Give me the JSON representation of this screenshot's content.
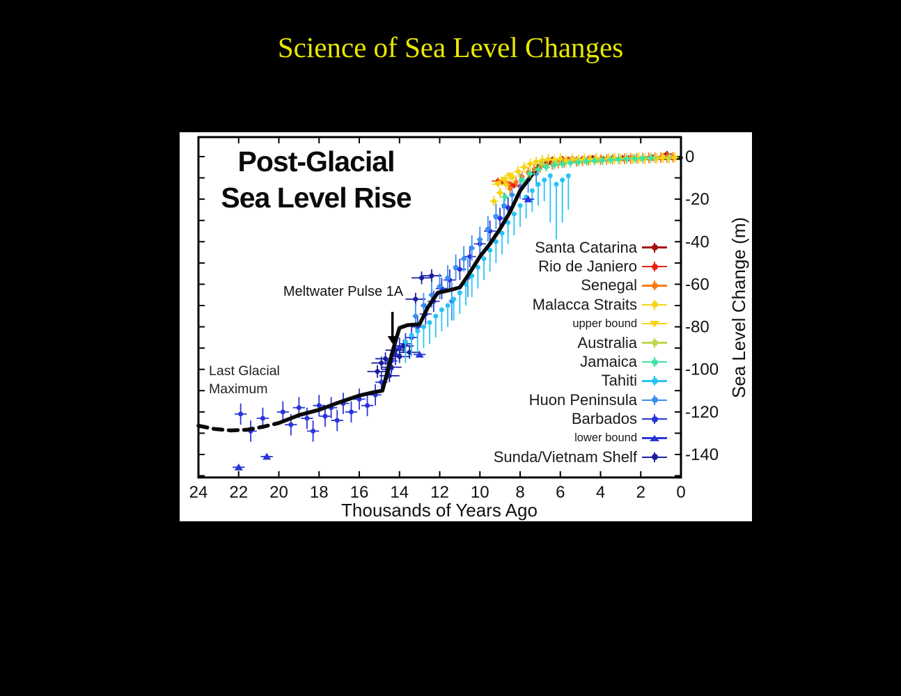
{
  "slide": {
    "title": "Science of Sea Level Changes",
    "title_color": "#e9e900",
    "background": "#000000"
  },
  "chart": {
    "title_line1": "Post-Glacial",
    "title_line2": "Sea Level Rise",
    "annotations": {
      "meltwater": {
        "text": "Meltwater Pulse 1A",
        "arrow_ka": 14.35,
        "arrow_m_from": -73,
        "arrow_m_to": -88
      },
      "lgm": {
        "line1": "Last Glacial",
        "line2": "Maximum"
      }
    }
  },
  "chart_data": {
    "type": "scatter",
    "title": "Post-Glacial Sea Level Rise",
    "xlabel": "Thousands of Years Ago",
    "ylabel": "Sea Level Change (m)",
    "x_axis": {
      "label": "Thousands of Years Ago",
      "range": [
        24,
        0
      ],
      "ticks": [
        24,
        22,
        20,
        18,
        16,
        14,
        12,
        10,
        8,
        6,
        4,
        2,
        0
      ],
      "direction": "reversed"
    },
    "y_axis": {
      "label": "Sea Level Change (m)",
      "range": [
        9,
        -151
      ],
      "ticks": [
        0,
        -20,
        -40,
        -60,
        -80,
        -100,
        -120,
        -140
      ],
      "minor_step": 10,
      "labels_side": "right"
    },
    "grid": "off",
    "legend_position": "right-inside",
    "curve": {
      "name": "eustatic sea level curve",
      "color": "#0a0a0a",
      "dashed": [
        [
          24,
          -126.5
        ],
        [
          23.2,
          -128
        ],
        [
          22.4,
          -128.7
        ],
        [
          21.6,
          -128.4
        ],
        [
          20.8,
          -127
        ],
        [
          20.0,
          -125.2
        ]
      ],
      "solid": [
        [
          20.0,
          -125.2
        ],
        [
          19.0,
          -121.5
        ],
        [
          18.0,
          -119
        ],
        [
          17.0,
          -115.5
        ],
        [
          16.0,
          -112.3
        ],
        [
          15.2,
          -110.6
        ],
        [
          14.85,
          -110
        ],
        [
          14.6,
          -101
        ],
        [
          14.3,
          -90
        ],
        [
          14.0,
          -80.5
        ],
        [
          13.6,
          -79.2
        ],
        [
          13.0,
          -78.8
        ],
        [
          12.6,
          -71
        ],
        [
          12.1,
          -64
        ],
        [
          11.6,
          -63
        ],
        [
          11.0,
          -61.5
        ],
        [
          10.6,
          -56
        ],
        [
          10.0,
          -47
        ],
        [
          9.5,
          -41
        ],
        [
          9.0,
          -34
        ],
        [
          8.5,
          -26
        ],
        [
          8.0,
          -16
        ],
        [
          7.6,
          -11
        ],
        [
          7.1,
          -4.5
        ],
        [
          6.6,
          -3
        ],
        [
          6.0,
          -2.2
        ],
        [
          5.0,
          -1.8
        ],
        [
          4.0,
          -1.3
        ],
        [
          3.0,
          -1
        ],
        [
          2.0,
          -0.8
        ],
        [
          1.0,
          -0.7
        ],
        [
          0.0,
          -0.6
        ]
      ]
    },
    "series": [
      {
        "key": "santa-catarina",
        "label": "Santa Catarina",
        "color": "#a31111",
        "marker": "dot",
        "error": "both",
        "xerr": 0.25,
        "yerr": 1.5,
        "points": [
          [
            6.4,
            -1.5
          ],
          [
            5.9,
            -1.2
          ],
          [
            5.4,
            -1
          ],
          [
            4.9,
            -1.1
          ],
          [
            4.4,
            -0.8
          ],
          [
            3.9,
            -0.9
          ],
          [
            3.4,
            -0.7
          ],
          [
            2.9,
            -0.8
          ],
          [
            2.4,
            -0.6
          ],
          [
            1.9,
            -0.7
          ],
          [
            1.4,
            -0.5
          ],
          [
            1.0,
            -0.6
          ],
          [
            0.7,
            1.2
          ],
          [
            0.4,
            -0.3
          ]
        ]
      },
      {
        "key": "rio-de-janiero",
        "label": "Rio de Janiero",
        "color": "#e82010",
        "marker": "dot",
        "error": "both",
        "xerr": 0.3,
        "yerr": 1.5,
        "points": [
          [
            9.1,
            -11.5
          ],
          [
            8.9,
            -12
          ],
          [
            8.7,
            -12.5
          ],
          [
            8.5,
            -13
          ],
          [
            8.3,
            -13.5
          ],
          [
            6.6,
            -2
          ],
          [
            5.6,
            -1.5
          ],
          [
            4.6,
            -1.2
          ],
          [
            3.6,
            -1
          ],
          [
            2.6,
            -0.8
          ],
          [
            1.6,
            -0.6
          ]
        ]
      },
      {
        "key": "senegal",
        "label": "Senegal",
        "color": "#f97b15",
        "marker": "dot",
        "error": "both",
        "xerr": 0.12,
        "yerr": 2.5,
        "points": [
          [
            8.5,
            -15
          ],
          [
            8.2,
            -12
          ],
          [
            7.9,
            -9.5
          ],
          [
            7.6,
            -7.5
          ],
          [
            7.3,
            -6
          ],
          [
            7.0,
            -5
          ],
          [
            6.7,
            -4.2
          ],
          [
            6.4,
            -3.6
          ],
          [
            6.1,
            -3.1
          ],
          [
            5.8,
            -2.8
          ],
          [
            5.5,
            -2.5
          ],
          [
            5.2,
            -2.2
          ],
          [
            4.9,
            -2
          ],
          [
            4.6,
            -1.8
          ],
          [
            4.3,
            -1.6
          ],
          [
            4.0,
            -1.5
          ],
          [
            3.7,
            -1.3
          ],
          [
            3.4,
            -1.2
          ],
          [
            3.1,
            -1.1
          ],
          [
            2.8,
            -1
          ],
          [
            2.5,
            -0.9
          ],
          [
            2.2,
            -0.8
          ],
          [
            1.9,
            -0.7
          ],
          [
            1.6,
            -0.6
          ],
          [
            1.3,
            -0.5
          ],
          [
            1.0,
            -0.5
          ],
          [
            0.7,
            -0.4
          ],
          [
            0.4,
            -0.3
          ]
        ]
      },
      {
        "key": "malacca-straits",
        "label": "Malacca Straits",
        "color": "#f7d411",
        "marker": "dot",
        "error": "both",
        "xerr": 0.2,
        "yerr": 2.5,
        "points": [
          [
            9.3,
            -21
          ],
          [
            9.0,
            -17
          ],
          [
            8.7,
            -13
          ],
          [
            8.4,
            -10
          ],
          [
            8.1,
            -7
          ],
          [
            7.8,
            -5
          ],
          [
            7.5,
            -3.5
          ],
          [
            7.2,
            -2.5
          ],
          [
            6.9,
            -1.8
          ],
          [
            6.6,
            -1.2
          ],
          [
            6.3,
            -1.6
          ],
          [
            6.0,
            -1
          ],
          [
            5.7,
            -2
          ],
          [
            5.4,
            -1.2
          ],
          [
            5.1,
            -1.6
          ],
          [
            4.8,
            -1
          ],
          [
            4.5,
            -1.4
          ],
          [
            4.2,
            -0.9
          ],
          [
            3.9,
            -1.5
          ],
          [
            3.6,
            -1
          ],
          [
            3.3,
            -0.8
          ],
          [
            3.0,
            -1.2
          ],
          [
            2.7,
            -0.9
          ],
          [
            2.4,
            -1.1
          ],
          [
            2.1,
            -0.7
          ],
          [
            1.8,
            -1
          ],
          [
            1.5,
            -0.6
          ],
          [
            1.2,
            -0.9
          ],
          [
            0.9,
            -0.5
          ],
          [
            0.6,
            -0.7
          ],
          [
            0.3,
            -0.4
          ]
        ]
      },
      {
        "key": "upper-bound",
        "label": "upper bound",
        "color": "#f7d411",
        "marker": "tri-down",
        "small": true,
        "error": "h",
        "xerr": 0.3,
        "yerr": 0,
        "points": [
          [
            9.1,
            -13
          ],
          [
            8.8,
            -11
          ],
          [
            8.5,
            -9
          ]
        ]
      },
      {
        "key": "australia",
        "label": "Australia",
        "color": "#c3d44d",
        "marker": "dot",
        "error": "both",
        "xerr": 0.2,
        "yerr": 1.5,
        "points": [
          [
            6.9,
            -3.5
          ],
          [
            6.2,
            -3
          ],
          [
            5.5,
            -2.6
          ],
          [
            4.8,
            -2.1
          ],
          [
            4.1,
            -1.8
          ],
          [
            3.4,
            -1.5
          ],
          [
            2.7,
            -1.2
          ],
          [
            2.0,
            -1
          ],
          [
            1.3,
            -0.8
          ],
          [
            0.6,
            -0.5
          ]
        ]
      },
      {
        "key": "jamaica",
        "label": "Jamaica",
        "color": "#3fe3a4",
        "marker": "dot",
        "error": "both",
        "xerr": 0.2,
        "yerr": 2,
        "points": [
          [
            8.75,
            -19
          ],
          [
            7.9,
            -11
          ],
          [
            7.5,
            -8
          ],
          [
            7.1,
            -6
          ],
          [
            6.7,
            -5
          ],
          [
            6.3,
            -4
          ],
          [
            5.9,
            -3.5
          ],
          [
            5.5,
            -3
          ],
          [
            5.1,
            -2.6
          ],
          [
            4.7,
            -2.2
          ],
          [
            4.3,
            -2
          ],
          [
            3.9,
            -1.8
          ],
          [
            3.5,
            -1.5
          ],
          [
            3.1,
            -1.3
          ],
          [
            2.7,
            -1.1
          ],
          [
            2.3,
            -0.9
          ],
          [
            1.9,
            -0.8
          ],
          [
            1.5,
            -0.6
          ]
        ]
      },
      {
        "key": "tahiti",
        "label": "Tahiti",
        "color": "#27c4f4",
        "marker": "dot",
        "error": "down",
        "xerr": 0.1,
        "yerr": 10,
        "points": [
          [
            13.7,
            -87
          ],
          [
            13.4,
            -84
          ],
          [
            13.1,
            -82
          ],
          [
            12.8,
            -80
          ],
          [
            12.5,
            -78
          ],
          [
            12.2,
            -75
          ],
          [
            11.9,
            -72
          ],
          [
            11.6,
            -70
          ],
          [
            11.3,
            -67
          ],
          [
            11.0,
            -64
          ],
          [
            10.7,
            -60
          ],
          [
            10.4,
            -56
          ],
          [
            10.1,
            -52
          ],
          [
            9.8,
            -48
          ],
          [
            9.5,
            -44
          ],
          [
            9.2,
            -40
          ],
          [
            8.9,
            -36
          ],
          [
            8.6,
            -31
          ],
          [
            8.3,
            -27
          ],
          [
            8.0,
            -23
          ],
          [
            7.7,
            -19
          ],
          [
            7.4,
            -16
          ],
          [
            7.1,
            -13
          ],
          [
            6.8,
            -11
          ],
          [
            6.5,
            -9,
            0,
            22
          ],
          [
            6.2,
            -13,
            0,
            26
          ],
          [
            5.9,
            -11,
            0,
            20
          ],
          [
            5.6,
            -9,
            0,
            16
          ]
        ]
      },
      {
        "key": "huon-peninsula",
        "label": "Huon Peninsula",
        "color": "#3a8ff0",
        "marker": "dot",
        "error": "both",
        "xerr": 0.15,
        "yerr": 6,
        "points": [
          [
            13.2,
            -75
          ],
          [
            12.8,
            -70
          ],
          [
            12.4,
            -65
          ],
          [
            12.0,
            -61
          ],
          [
            11.6,
            -57
          ],
          [
            11.2,
            -52
          ],
          [
            10.8,
            -48
          ],
          [
            10.4,
            -43
          ],
          [
            10.0,
            -39
          ],
          [
            9.6,
            -34
          ],
          [
            9.2,
            -28
          ],
          [
            8.8,
            -23
          ],
          [
            8.4,
            -18
          ],
          [
            8.0,
            -14
          ],
          [
            7.6,
            -11
          ],
          [
            7.2,
            -8
          ],
          [
            11.4,
            -68,
            0.15,
            9
          ],
          [
            10.6,
            -57,
            0.15,
            9
          ]
        ]
      },
      {
        "key": "barbados",
        "label": "Barbados",
        "color": "#2a35d8",
        "marker": "dot",
        "error": "both",
        "xerr": 0.3,
        "yerr": 5,
        "points": [
          [
            21.9,
            -121
          ],
          [
            21.4,
            -129
          ],
          [
            20.8,
            -123
          ],
          [
            19.8,
            -120
          ],
          [
            19.4,
            -126
          ],
          [
            19.0,
            -118
          ],
          [
            18.6,
            -123
          ],
          [
            18.3,
            -129
          ],
          [
            18.0,
            -117
          ],
          [
            17.7,
            -122
          ],
          [
            17.4,
            -118
          ],
          [
            17.1,
            -124
          ],
          [
            16.8,
            -116
          ],
          [
            16.4,
            -120
          ],
          [
            16.0,
            -114
          ],
          [
            15.6,
            -117
          ],
          [
            15.2,
            -112
          ],
          [
            14.9,
            -106
          ],
          [
            14.6,
            -100
          ],
          [
            14.4,
            -96
          ],
          [
            14.2,
            -93
          ],
          [
            14.0,
            -90
          ],
          [
            13.7,
            -88
          ],
          [
            13.4,
            -85
          ],
          [
            13.1,
            -80
          ],
          [
            12.7,
            -74
          ],
          [
            12.3,
            -68
          ],
          [
            11.9,
            -62
          ],
          [
            11.5,
            -58
          ],
          [
            11.0,
            -53
          ],
          [
            10.5,
            -47
          ],
          [
            10.0,
            -41
          ],
          [
            9.5,
            -35
          ],
          [
            9.0,
            -29
          ],
          [
            8.6,
            -24
          ]
        ]
      },
      {
        "key": "lower-bound",
        "label": "lower bound",
        "color": "#2a35d8",
        "marker": "tri-up",
        "small": true,
        "error": "h",
        "xerr": 0.3,
        "yerr": 0,
        "points": [
          [
            22.0,
            -146
          ],
          [
            20.6,
            -141
          ],
          [
            13.0,
            -93
          ],
          [
            7.6,
            -20
          ]
        ]
      },
      {
        "key": "sunda-vietnam-shelf",
        "label": "Sunda/Vietnam Shelf",
        "color": "#1b1f9e",
        "marker": "dot",
        "error": "both",
        "xerr": 0.5,
        "yerr": 3,
        "points": [
          [
            15.1,
            -101
          ],
          [
            14.9,
            -97
          ],
          [
            14.7,
            -95
          ],
          [
            14.5,
            -103
          ],
          [
            14.4,
            -99
          ],
          [
            14.2,
            -91
          ],
          [
            14.0,
            -94
          ],
          [
            13.8,
            -89
          ],
          [
            13.5,
            -92
          ],
          [
            13.2,
            -67
          ],
          [
            12.9,
            -57
          ],
          [
            12.4,
            -56
          ]
        ]
      }
    ]
  }
}
